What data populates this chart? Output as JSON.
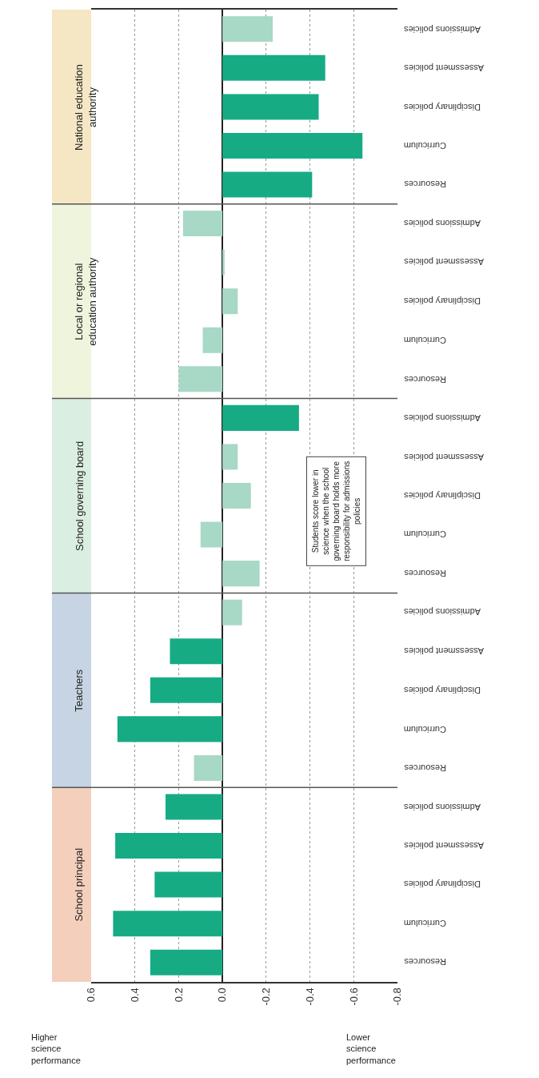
{
  "chart_data": {
    "type": "bar",
    "orientation": "horizontal",
    "categories": [
      "Admissions policies",
      "Assessment policies",
      "Disciplinary policies",
      "Curriculum",
      "Resources",
      "Admissions policies",
      "Assessment policies",
      "Disciplinary policies",
      "Curriculum",
      "Resources",
      "Admissions policies",
      "Assessment policies",
      "Disciplinary policies",
      "Curriculum",
      "Resources",
      "Admissions policies",
      "Assessment policies",
      "Disciplinary policies",
      "Curriculum",
      "Resources",
      "Admissions policies",
      "Assessment policies",
      "Disciplinary policies",
      "Curriculum",
      "Resources"
    ],
    "values": [
      -0.23,
      -0.47,
      -0.44,
      -0.64,
      -0.41,
      0.18,
      -0.01,
      -0.07,
      0.09,
      0.2,
      -0.35,
      -0.07,
      -0.13,
      0.1,
      -0.17,
      -0.09,
      0.24,
      0.33,
      0.48,
      0.13,
      0.26,
      0.49,
      0.31,
      0.5,
      0.33
    ],
    "colors": [
      "#a8d8c6",
      "#17ab84",
      "#17ab84",
      "#17ab84",
      "#17ab84",
      "#a8d8c6",
      "#a8d8c6",
      "#a8d8c6",
      "#a8d8c6",
      "#a8d8c6",
      "#17ab84",
      "#a8d8c6",
      "#a8d8c6",
      "#a8d8c6",
      "#a8d8c6",
      "#a8d8c6",
      "#17ab84",
      "#17ab84",
      "#17ab84",
      "#a8d8c6",
      "#17ab84",
      "#17ab84",
      "#17ab84",
      "#17ab84",
      "#17ab84"
    ],
    "xlim": [
      0.6,
      -0.8
    ],
    "xticks": [
      0.6,
      0.4,
      0.2,
      {
        "value": 0,
        "label": "0.0"
      },
      -0.2,
      -0.4,
      -0.6,
      -0.8
    ],
    "grid": "x",
    "annotations": [
      "National education authority",
      "Local or regional education authority",
      "School governing board",
      "Teachers",
      "School principal",
      "Students score lower in science when the school governing board holds more responsibility for admissions policies",
      "Higher science performance",
      "Lower science performance"
    ]
  }
}
